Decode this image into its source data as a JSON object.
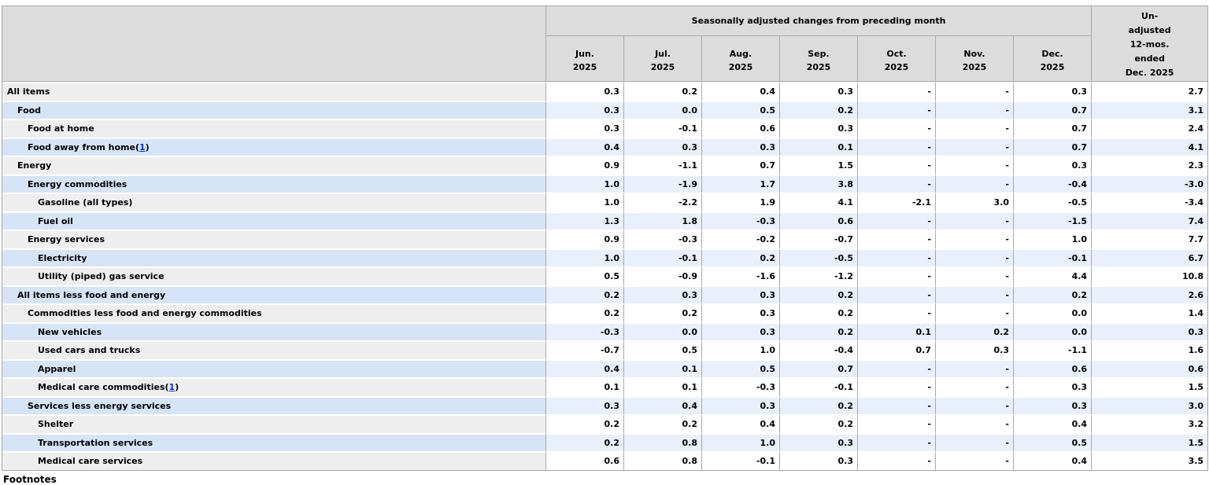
{
  "colors": {
    "header-bg": "#dcdcdc",
    "stub-gray": "#eeeeee",
    "stub-blue": "#d6e4f8",
    "data-blue": "#e9f0fb",
    "data-white": "#ffffff",
    "grid-line": "#a9a9a9",
    "outer-border": "#a6a6a6",
    "link-blue": "#0033cc",
    "text-color": "#000000"
  },
  "table": {
    "header": {
      "group_title": "Seasonally adjusted changes from preceding month",
      "months": [
        {
          "month": "Jun.",
          "year": "2025"
        },
        {
          "month": "Jul.",
          "year": "2025"
        },
        {
          "month": "Aug.",
          "year": "2025"
        },
        {
          "month": "Sep.",
          "year": "2025"
        },
        {
          "month": "Oct.",
          "year": "2025"
        },
        {
          "month": "Nov.",
          "year": "2025"
        },
        {
          "month": "Dec.",
          "year": "2025"
        }
      ],
      "unadjusted_label": "Un-\nadjusted\n12-mos.\nended\nDec. 2025"
    },
    "rows": [
      {
        "label": "All items",
        "indent": 0,
        "footnote": null,
        "values": [
          "0.3",
          "0.2",
          "0.4",
          "0.3",
          "-",
          "-",
          "0.3",
          "2.7"
        ]
      },
      {
        "label": "Food",
        "indent": 1,
        "footnote": null,
        "values": [
          "0.3",
          "0.0",
          "0.5",
          "0.2",
          "-",
          "-",
          "0.7",
          "3.1"
        ]
      },
      {
        "label": "Food at home",
        "indent": 2,
        "footnote": null,
        "values": [
          "0.3",
          "-0.1",
          "0.6",
          "0.3",
          "-",
          "-",
          "0.7",
          "2.4"
        ]
      },
      {
        "label": "Food away from home",
        "indent": 2,
        "footnote": "1",
        "values": [
          "0.4",
          "0.3",
          "0.3",
          "0.1",
          "-",
          "-",
          "0.7",
          "4.1"
        ]
      },
      {
        "label": "Energy",
        "indent": 1,
        "footnote": null,
        "values": [
          "0.9",
          "-1.1",
          "0.7",
          "1.5",
          "-",
          "-",
          "0.3",
          "2.3"
        ]
      },
      {
        "label": "Energy commodities",
        "indent": 2,
        "footnote": null,
        "values": [
          "1.0",
          "-1.9",
          "1.7",
          "3.8",
          "-",
          "-",
          "-0.4",
          "-3.0"
        ]
      },
      {
        "label": "Gasoline (all types)",
        "indent": 3,
        "footnote": null,
        "values": [
          "1.0",
          "-2.2",
          "1.9",
          "4.1",
          "-2.1",
          "3.0",
          "-0.5",
          "-3.4"
        ]
      },
      {
        "label": "Fuel oil",
        "indent": 3,
        "footnote": null,
        "values": [
          "1.3",
          "1.8",
          "-0.3",
          "0.6",
          "-",
          "-",
          "-1.5",
          "7.4"
        ]
      },
      {
        "label": "Energy services",
        "indent": 2,
        "footnote": null,
        "values": [
          "0.9",
          "-0.3",
          "-0.2",
          "-0.7",
          "-",
          "-",
          "1.0",
          "7.7"
        ]
      },
      {
        "label": "Electricity",
        "indent": 3,
        "footnote": null,
        "values": [
          "1.0",
          "-0.1",
          "0.2",
          "-0.5",
          "-",
          "-",
          "-0.1",
          "6.7"
        ]
      },
      {
        "label": "Utility (piped) gas service",
        "indent": 3,
        "footnote": null,
        "values": [
          "0.5",
          "-0.9",
          "-1.6",
          "-1.2",
          "-",
          "-",
          "4.4",
          "10.8"
        ]
      },
      {
        "label": "All items less food and energy",
        "indent": 1,
        "footnote": null,
        "values": [
          "0.2",
          "0.3",
          "0.3",
          "0.2",
          "-",
          "-",
          "0.2",
          "2.6"
        ]
      },
      {
        "label": "Commodities less food and energy commodities",
        "indent": 2,
        "footnote": null,
        "values": [
          "0.2",
          "0.2",
          "0.3",
          "0.2",
          "-",
          "-",
          "0.0",
          "1.4"
        ]
      },
      {
        "label": "New vehicles",
        "indent": 3,
        "footnote": null,
        "values": [
          "-0.3",
          "0.0",
          "0.3",
          "0.2",
          "0.1",
          "0.2",
          "0.0",
          "0.3"
        ]
      },
      {
        "label": "Used cars and trucks",
        "indent": 3,
        "footnote": null,
        "values": [
          "-0.7",
          "0.5",
          "1.0",
          "-0.4",
          "0.7",
          "0.3",
          "-1.1",
          "1.6"
        ]
      },
      {
        "label": "Apparel",
        "indent": 3,
        "footnote": null,
        "values": [
          "0.4",
          "0.1",
          "0.5",
          "0.7",
          "-",
          "-",
          "0.6",
          "0.6"
        ]
      },
      {
        "label": "Medical care commodities",
        "indent": 3,
        "footnote": "1",
        "values": [
          "0.1",
          "0.1",
          "-0.3",
          "-0.1",
          "-",
          "-",
          "0.3",
          "1.5"
        ]
      },
      {
        "label": "Services less energy services",
        "indent": 2,
        "footnote": null,
        "values": [
          "0.3",
          "0.4",
          "0.3",
          "0.2",
          "-",
          "-",
          "0.3",
          "3.0"
        ]
      },
      {
        "label": "Shelter",
        "indent": 3,
        "footnote": null,
        "values": [
          "0.2",
          "0.2",
          "0.4",
          "0.2",
          "-",
          "-",
          "0.4",
          "3.2"
        ]
      },
      {
        "label": "Transportation services",
        "indent": 3,
        "footnote": null,
        "values": [
          "0.2",
          "0.8",
          "1.0",
          "0.3",
          "-",
          "-",
          "0.5",
          "1.5"
        ]
      },
      {
        "label": "Medical care services",
        "indent": 3,
        "footnote": null,
        "values": [
          "0.6",
          "0.8",
          "-0.1",
          "0.3",
          "-",
          "-",
          "0.4",
          "3.5"
        ]
      }
    ],
    "footer_heading": "Footnotes"
  }
}
